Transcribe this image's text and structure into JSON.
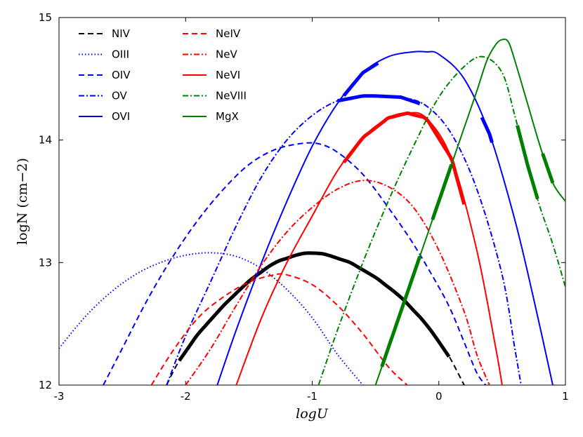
{
  "chart_data": {
    "type": "line",
    "title": "",
    "xlabel": "logU",
    "ylabel": "logN (cm−2)",
    "xlim": [
      -3,
      1
    ],
    "ylim": [
      12,
      15
    ],
    "xticks": [
      -3,
      -2,
      -1,
      0,
      1
    ],
    "xtick_labels": [
      "-3",
      "-2",
      "-1",
      "0",
      "1"
    ],
    "yticks": [
      12,
      13,
      14,
      15
    ],
    "ytick_labels": [
      "12",
      "13",
      "14",
      "15"
    ],
    "grid": false,
    "legend_position": "top-left",
    "series": [
      {
        "name": "NIV",
        "color": "#000000",
        "dash": "dashed",
        "x": [
          -2.15,
          -2.05,
          -1.9,
          -1.7,
          -1.5,
          -1.3,
          -1.1,
          -1.03,
          -0.9,
          -0.7,
          -0.5,
          -0.3,
          -0.1,
          0.05,
          0.1,
          0.2
        ],
        "y": [
          12.0,
          12.2,
          12.42,
          12.65,
          12.85,
          13.0,
          13.07,
          13.08,
          13.07,
          13.0,
          12.88,
          12.72,
          12.5,
          12.28,
          12.2,
          12.0
        ],
        "thick": [
          -2.05,
          0.08
        ]
      },
      {
        "name": "OIII",
        "color": "#0000ff",
        "dash": "dotted",
        "x": [
          -3.0,
          -2.8,
          -2.6,
          -2.4,
          -2.2,
          -2.0,
          -1.8,
          -1.6,
          -1.4,
          -1.2,
          -1.0,
          -0.8,
          -0.6
        ],
        "y": [
          12.3,
          12.55,
          12.75,
          12.9,
          13.0,
          13.06,
          13.08,
          13.05,
          12.95,
          12.78,
          12.55,
          12.25,
          12.0
        ],
        "thick": null
      },
      {
        "name": "OIV",
        "color": "#0000ff",
        "dash": "dashed",
        "x": [
          -2.65,
          -2.5,
          -2.3,
          -2.1,
          -1.9,
          -1.7,
          -1.5,
          -1.3,
          -1.1,
          -0.95,
          -0.8,
          -0.6,
          -0.4,
          -0.2,
          0.0,
          0.1,
          0.2,
          0.3,
          0.37
        ],
        "y": [
          12.0,
          12.3,
          12.7,
          13.05,
          13.35,
          13.6,
          13.8,
          13.92,
          13.97,
          13.97,
          13.9,
          13.72,
          13.45,
          13.15,
          12.8,
          12.6,
          12.35,
          12.1,
          12.0
        ],
        "thick": null
      },
      {
        "name": "OV",
        "color": "#0000ff",
        "dash": "dashdot",
        "x": [
          -2.15,
          -2.0,
          -1.8,
          -1.6,
          -1.4,
          -1.2,
          -1.0,
          -0.8,
          -0.6,
          -0.5,
          -0.3,
          -0.1,
          0.1,
          0.3,
          0.5,
          0.6,
          0.65
        ],
        "y": [
          12.0,
          12.4,
          12.85,
          13.3,
          13.7,
          14.0,
          14.2,
          14.32,
          14.36,
          14.36,
          14.35,
          14.28,
          14.05,
          13.6,
          12.9,
          12.3,
          12.0
        ],
        "thick": [
          -0.8,
          -0.15
        ]
      },
      {
        "name": "OVI",
        "color": "#0000ff",
        "dash": "solid",
        "x": [
          -1.75,
          -1.6,
          -1.4,
          -1.2,
          -1.0,
          -0.8,
          -0.6,
          -0.4,
          -0.2,
          -0.1,
          0.0,
          0.2,
          0.4,
          0.6,
          0.75,
          0.9
        ],
        "y": [
          12.0,
          12.45,
          13.0,
          13.5,
          13.95,
          14.3,
          14.55,
          14.68,
          14.72,
          14.72,
          14.7,
          14.5,
          14.05,
          13.35,
          12.7,
          12.0
        ],
        "thick": [
          -0.75,
          -0.48,
          0.34,
          0.42
        ]
      },
      {
        "name": "NeIV",
        "color": "#ff0000",
        "dash": "dashed",
        "x": [
          -2.27,
          -2.1,
          -1.9,
          -1.7,
          -1.5,
          -1.3,
          -1.2,
          -1.0,
          -0.8,
          -0.6,
          -0.4,
          -0.25
        ],
        "y": [
          12.0,
          12.28,
          12.55,
          12.72,
          12.84,
          12.9,
          12.9,
          12.82,
          12.65,
          12.42,
          12.15,
          12.0
        ],
        "thick": null
      },
      {
        "name": "NeV",
        "color": "#ff0000",
        "dash": "dashdot",
        "x": [
          -2.0,
          -1.8,
          -1.6,
          -1.4,
          -1.2,
          -1.0,
          -0.8,
          -0.6,
          -0.4,
          -0.2,
          0.0,
          0.2,
          0.3,
          0.4
        ],
        "y": [
          12.0,
          12.3,
          12.65,
          12.98,
          13.25,
          13.45,
          13.6,
          13.67,
          13.62,
          13.45,
          13.1,
          12.6,
          12.25,
          12.0
        ],
        "thick": null
      },
      {
        "name": "NeVI",
        "color": "#ff0000",
        "dash": "solid",
        "x": [
          -1.6,
          -1.4,
          -1.2,
          -1.0,
          -0.8,
          -0.6,
          -0.4,
          -0.25,
          -0.1,
          0.1,
          0.3,
          0.45,
          0.5
        ],
        "y": [
          12.0,
          12.55,
          13.0,
          13.38,
          13.75,
          14.02,
          14.18,
          14.22,
          14.18,
          13.85,
          13.1,
          12.3,
          12.0
        ],
        "thick": [
          -0.75,
          0.2
        ]
      },
      {
        "name": "NeVIII",
        "color": "#008000",
        "dash": "dashdot",
        "x": [
          -0.95,
          -0.8,
          -0.6,
          -0.4,
          -0.2,
          0.0,
          0.2,
          0.35,
          0.5,
          0.6,
          0.7,
          0.8,
          0.9,
          1.0
        ],
        "y": [
          12.0,
          12.45,
          13.0,
          13.5,
          13.95,
          14.35,
          14.6,
          14.68,
          14.55,
          14.2,
          13.8,
          13.45,
          13.15,
          12.8
        ],
        "thick": [
          0.62,
          0.78
        ]
      },
      {
        "name": "MgX",
        "color": "#008000",
        "dash": "solid",
        "x": [
          -0.5,
          -0.3,
          -0.1,
          0.1,
          0.2,
          0.3,
          0.38,
          0.45,
          0.5,
          0.55,
          0.6,
          0.7,
          0.8,
          0.9,
          1.0
        ],
        "y": [
          12.0,
          12.6,
          13.2,
          13.8,
          14.1,
          14.4,
          14.65,
          14.78,
          14.82,
          14.8,
          14.65,
          14.3,
          13.95,
          13.65,
          13.5
        ],
        "thick": [
          -0.45,
          -0.15,
          -0.05,
          0.1,
          0.82,
          0.9
        ]
      }
    ]
  }
}
